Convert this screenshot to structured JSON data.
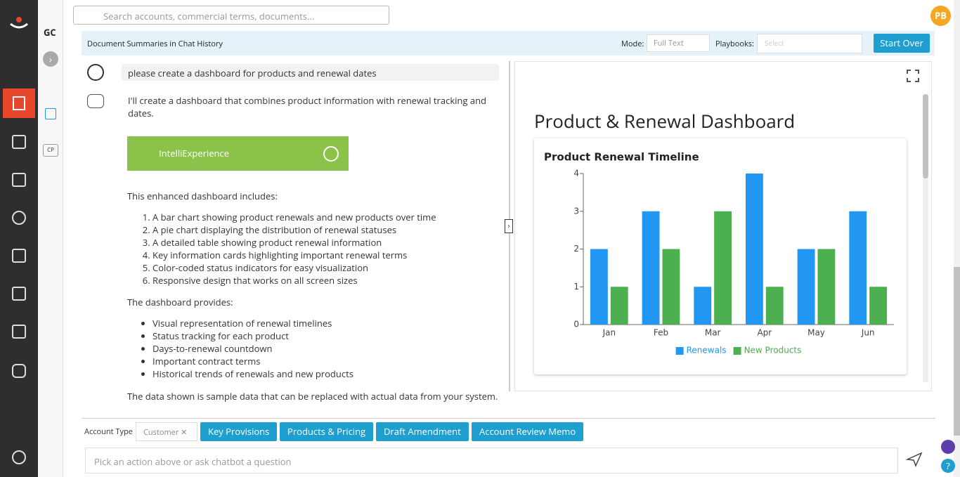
{
  "header": {
    "search_placeholder": "Search accounts, commercial terms, documents...",
    "avatar": "PB",
    "workspace": "GC",
    "cp_badge": "CP"
  },
  "toolbar": {
    "title": "Document Summaries in Chat History",
    "mode_label": "Mode:",
    "mode_value": "Full Text",
    "playbooks_label": "Playbooks:",
    "playbooks_value": "Select",
    "start_over": "Start Over"
  },
  "chat": {
    "user_message": "please create a dashboard for products and renewal dates",
    "bot_intro": "I'll create a dashboard that combines product information with renewal tracking and dates.",
    "intelli_button": "IntelliExperience",
    "includes_heading": "This enhanced dashboard includes:",
    "includes": [
      "A bar chart showing product renewals and new products over time",
      "A pie chart displaying the distribution of renewal statuses",
      "A detailed table showing product renewal information",
      "Key information cards highlighting important renewal terms",
      "Color-coded status indicators for easy visualization",
      "Responsive design that works on all screen sizes"
    ],
    "provides_heading": "The dashboard provides:",
    "provides": [
      "Visual representation of renewal timelines",
      "Status tracking for each product",
      "Days-to-renewal countdown",
      "Important contract terms",
      "Historical trends of renewals and new products"
    ],
    "closing": "The data shown is sample data that can be replaced with actual data from your system."
  },
  "dashboard": {
    "title": "Product & Renewal Dashboard"
  },
  "chart_data": {
    "type": "bar",
    "title": "Product Renewal Timeline",
    "categories": [
      "Jan",
      "Feb",
      "Mar",
      "Apr",
      "May",
      "Jun"
    ],
    "series": [
      {
        "name": "Renewals",
        "color": "#2196f3",
        "values": [
          2,
          3,
          1,
          4,
          2,
          3
        ]
      },
      {
        "name": "New Products",
        "color": "#4caf50",
        "values": [
          1,
          2,
          3,
          1,
          2,
          1
        ]
      }
    ],
    "ylim": [
      0,
      4
    ],
    "yticks": [
      0,
      1,
      2,
      3,
      4
    ],
    "grid": false,
    "legend": "bottom"
  },
  "footer": {
    "account_type_label": "Account Type",
    "account_type_value": "Customer",
    "actions": [
      "Key Provisions",
      "Products & Pricing",
      "Draft Amendment",
      "Account Review Memo"
    ],
    "input_placeholder": "Pick an action above or ask chatbot a question"
  }
}
